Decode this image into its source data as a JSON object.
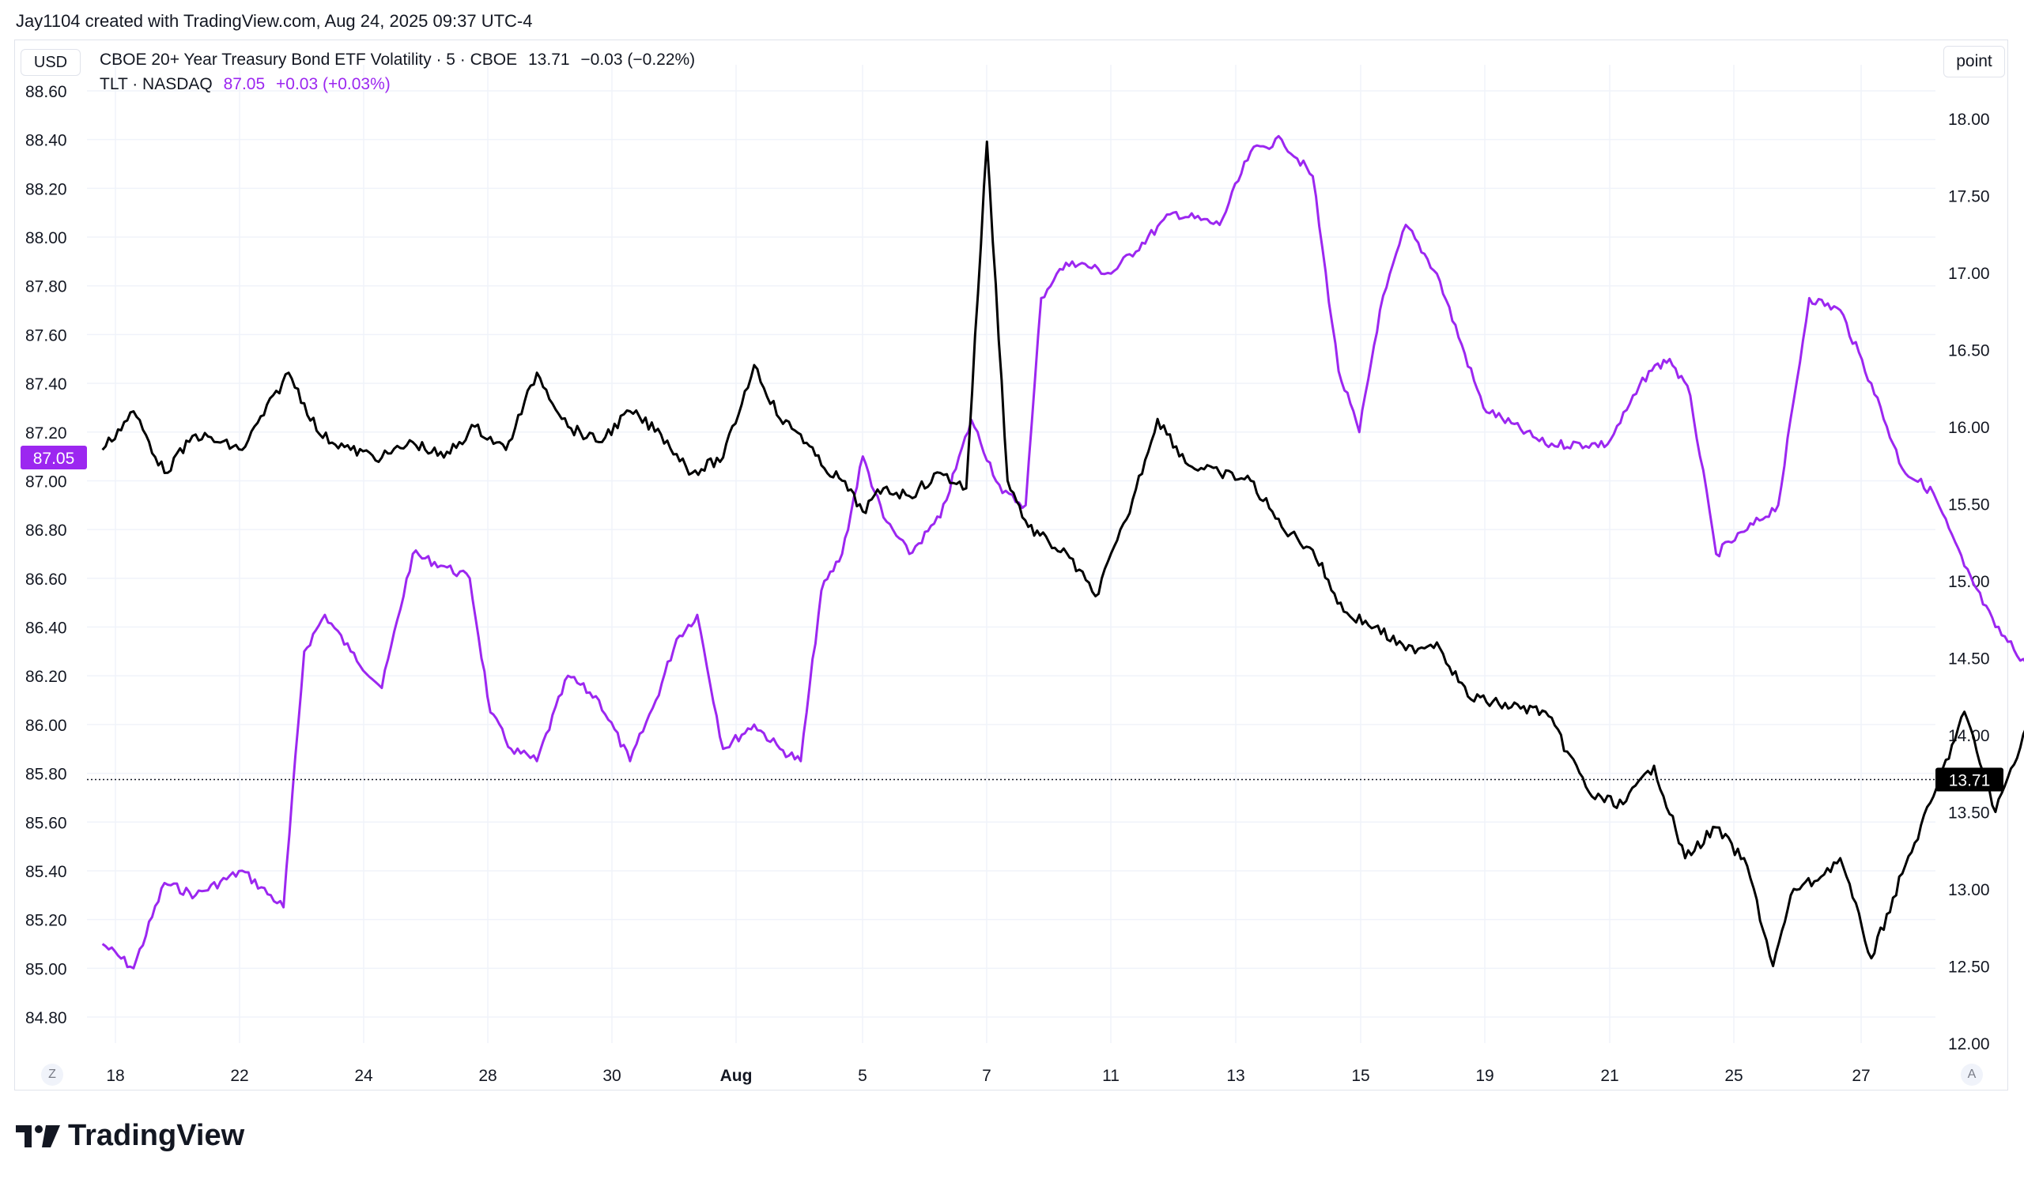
{
  "header": {
    "attribution": "Jay1104 created with TradingView.com, Aug 24, 2025 09:37 UTC-4"
  },
  "controls": {
    "currency_label": "USD",
    "unit_label": "point",
    "auto_scale_left": "Z",
    "auto_scale_right": "A"
  },
  "legend": {
    "series1": {
      "name": "CBOE 20+ Year Treasury Bond ETF Volatility · 5 · CBOE",
      "value": "13.71",
      "change": "−0.03 (−0.22%)"
    },
    "series2": {
      "name": "TLT · NASDAQ",
      "value": "87.05",
      "change": "+0.03 (+0.03%)"
    }
  },
  "branding": {
    "text": "TradingView"
  },
  "chart_data": {
    "type": "line",
    "title": "CBOE 20+ Year Treasury Bond ETF Volatility · 5 · CBOE",
    "x_ticks": [
      "18",
      "22",
      "24",
      "28",
      "30",
      "Aug",
      "5",
      "7",
      "11",
      "13",
      "15",
      "19",
      "21",
      "25",
      "27"
    ],
    "left_axis": {
      "label": "USD",
      "ticks": [
        "88.60",
        "88.40",
        "88.20",
        "88.00",
        "87.80",
        "87.60",
        "87.40",
        "87.20",
        "87.00",
        "86.80",
        "86.60",
        "86.40",
        "86.20",
        "86.00",
        "85.80",
        "85.60",
        "85.40",
        "85.20",
        "85.00",
        "84.80"
      ],
      "range": [
        84.8,
        88.6
      ]
    },
    "right_axis": {
      "label": "point",
      "ticks": [
        "18.00",
        "17.50",
        "17.00",
        "16.50",
        "16.00",
        "15.50",
        "15.00",
        "14.50",
        "14.00",
        "13.50",
        "13.00",
        "12.50",
        "12.00"
      ],
      "range": [
        12.0,
        18.0
      ]
    },
    "last_value_labels": {
      "left": "87.05",
      "right": "13.71"
    },
    "grid": true,
    "series": [
      {
        "name": "TLT · NASDAQ",
        "axis": "left",
        "color": "#9c27f0",
        "x": [
          "Jul 17",
          "Jul 17",
          "Jul 18",
          "Jul 18",
          "Jul 19",
          "Jul 20",
          "Jul 20",
          "Jul 20",
          "Jul 21",
          "Jul 21",
          "Jul 22",
          "Jul 22",
          "Jul 23",
          "Jul 23",
          "Jul 23",
          "Jul 24",
          "Jul 24",
          "Jul 25",
          "Jul 25",
          "Jul 26",
          "Jul 26",
          "Jul 26",
          "Jul 27",
          "Jul 27",
          "Jul 28",
          "Jul 28",
          "Jul 28",
          "Jul 29",
          "Jul 29",
          "Jul 29",
          "Jul 30",
          "Jul 30",
          "Jul 31",
          "Jul 31",
          "Aug 1",
          "Aug 1",
          "Aug 1",
          "Aug 1",
          "Aug 2",
          "Aug 3",
          "Aug 4",
          "Aug 4",
          "Aug 5",
          "Aug 5",
          "Aug 6",
          "Aug 6",
          "Aug 6",
          "Aug 7",
          "Aug 7",
          "Aug 8",
          "Aug 9",
          "Aug 10",
          "Aug 11",
          "Aug 11",
          "Aug 11",
          "Aug 12",
          "Aug 12",
          "Aug 13",
          "Aug 13",
          "Aug 14",
          "Aug 14",
          "Aug 15",
          "Aug 15",
          "Aug 16",
          "Aug 16",
          "Aug 17",
          "Aug 17",
          "Aug 18",
          "Aug 18",
          "Aug 19",
          "Aug 19",
          "Aug 20",
          "Aug 20",
          "Aug 21",
          "Aug 21",
          "Aug 22",
          "Aug 22",
          "Aug 22",
          "Aug 23",
          "Aug 23",
          "Aug 24",
          "Aug 24"
        ],
        "values": [
          85.1,
          85.0,
          85.35,
          85.3,
          85.4,
          85.25,
          86.3,
          86.45,
          86.3,
          86.15,
          86.7,
          86.65,
          86.6,
          86.05,
          85.9,
          85.85,
          86.2,
          86.1,
          85.85,
          86.1,
          86.35,
          86.45,
          85.9,
          86.0,
          85.9,
          85.85,
          86.55,
          86.7,
          87.1,
          86.85,
          86.7,
          86.85,
          87.25,
          86.95,
          86.9,
          87.75,
          87.85,
          87.9,
          87.85,
          88.1,
          88.05,
          88.35,
          88.4,
          88.25,
          87.45,
          87.2,
          87.7,
          88.05,
          87.85,
          87.3,
          87.15,
          87.15,
          87.45,
          87.5,
          87.35,
          86.7,
          86.8,
          86.9,
          87.75,
          87.7,
          87.4,
          87.05,
          86.95,
          86.65,
          86.4,
          86.25,
          86.5,
          86.1,
          86.05,
          86.55,
          86.55,
          86.7,
          86.8,
          86.85,
          86.7,
          86.15,
          86.05,
          86.5,
          87.2,
          86.95,
          87.05,
          87.05
        ]
      },
      {
        "name": "CBOE 20+ Year Treasury Bond ETF Volatility · 5 · CBOE",
        "axis": "right",
        "color": "#000000",
        "x": [
          "Jul 17",
          "Jul 17",
          "Jul 18",
          "Jul 18",
          "Jul 19",
          "Jul 20",
          "Jul 20",
          "Jul 21",
          "Jul 21",
          "Jul 22",
          "Jul 22",
          "Jul 23",
          "Jul 23",
          "Jul 24",
          "Jul 24",
          "Jul 25",
          "Jul 25",
          "Jul 26",
          "Jul 26",
          "Jul 27",
          "Jul 27",
          "Jul 28",
          "Jul 28",
          "Jul 28",
          "Jul 29",
          "Jul 29",
          "Jul 29",
          "Jul 30",
          "Jul 30",
          "Jul 31",
          "Jul 31",
          "Jul 31",
          "Aug 1",
          "Aug 1",
          "Aug 1",
          "Aug 2",
          "Aug 2",
          "Aug 3",
          "Aug 3",
          "Aug 4",
          "Aug 4",
          "Aug 5",
          "Aug 5",
          "Aug 6",
          "Aug 6",
          "Aug 7",
          "Aug 7",
          "Aug 8",
          "Aug 8",
          "Aug 9",
          "Aug 10",
          "Aug 10",
          "Aug 11",
          "Aug 11",
          "Aug 12",
          "Aug 12",
          "Aug 13",
          "Aug 13",
          "Aug 13",
          "Aug 14",
          "Aug 14",
          "Aug 15",
          "Aug 15",
          "Aug 16",
          "Aug 16",
          "Aug 17",
          "Aug 17",
          "Aug 18",
          "Aug 18",
          "Aug 19",
          "Aug 19",
          "Aug 20",
          "Aug 20",
          "Aug 21",
          "Aug 21",
          "Aug 22",
          "Aug 22",
          "Aug 23",
          "Aug 23",
          "Aug 24",
          "Aug 24"
        ],
        "values": [
          15.85,
          16.1,
          15.7,
          15.95,
          15.85,
          16.35,
          15.95,
          15.85,
          15.8,
          15.9,
          15.8,
          16.0,
          15.85,
          16.35,
          16.0,
          15.9,
          16.1,
          15.95,
          15.7,
          15.8,
          16.4,
          16.05,
          15.95,
          15.75,
          15.65,
          15.45,
          15.6,
          15.55,
          15.7,
          15.6,
          17.85,
          15.65,
          15.35,
          15.25,
          15.15,
          14.9,
          15.4,
          16.05,
          15.75,
          15.7,
          15.65,
          15.35,
          15.2,
          14.8,
          14.7,
          14.55,
          14.6,
          14.25,
          14.2,
          14.15,
          13.6,
          13.55,
          13.8,
          13.2,
          13.4,
          13.15,
          12.5,
          13.0,
          13.05,
          13.2,
          12.55,
          13.1,
          13.6,
          14.15,
          13.5,
          14.05,
          14.25,
          14.05,
          14.0,
          14.2,
          14.15,
          14.25,
          14.35,
          15.0,
          14.6,
          14.8,
          14.7,
          14.1,
          13.9,
          13.75,
          13.71
        ]
      }
    ]
  }
}
